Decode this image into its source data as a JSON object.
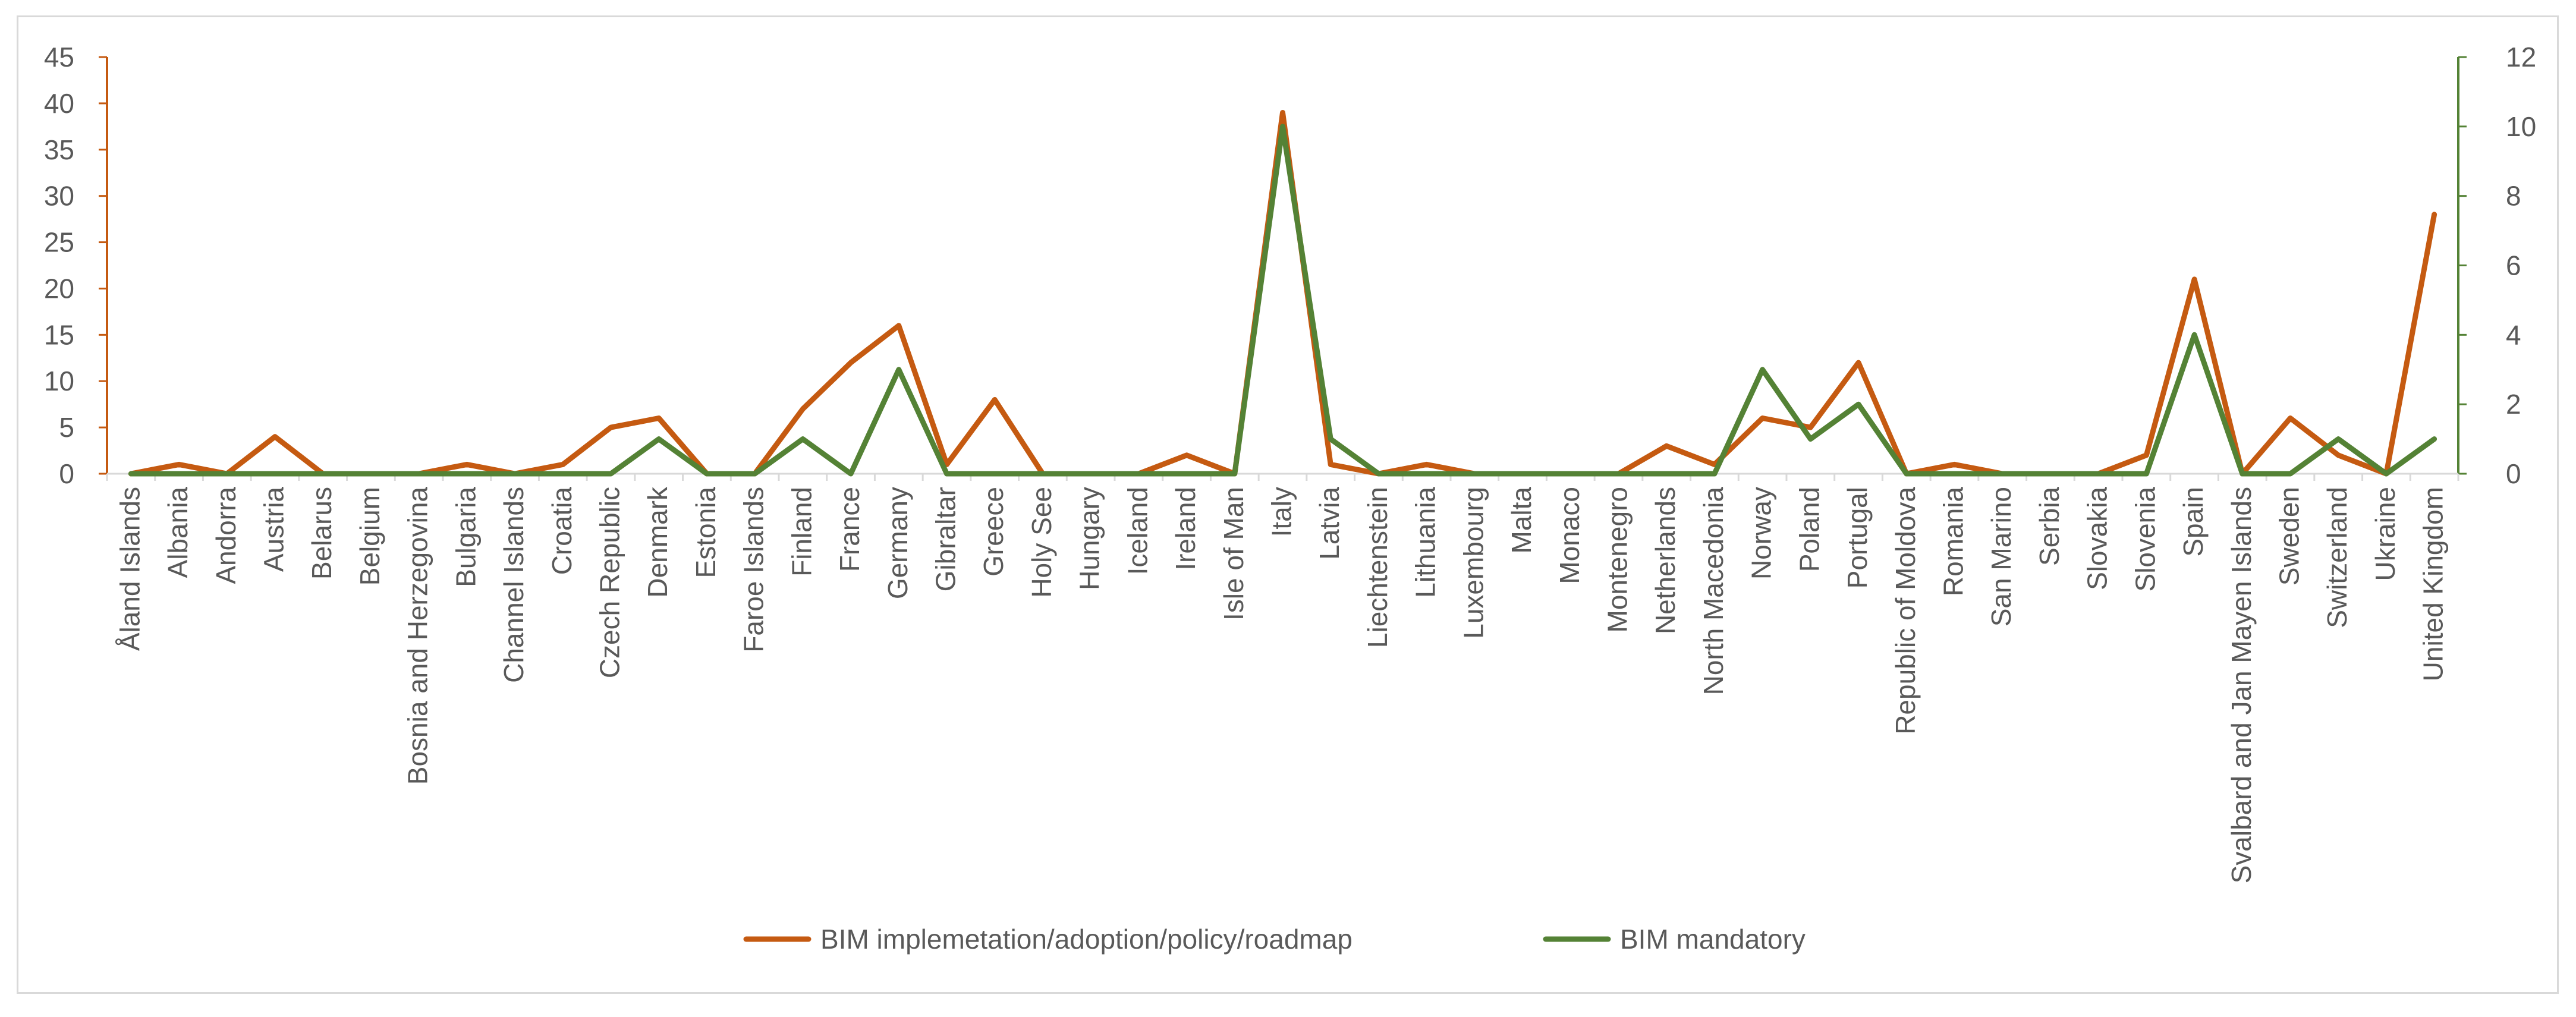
{
  "chart_data": {
    "type": "line",
    "categories": [
      "Åland Islands",
      "Albania",
      "Andorra",
      "Austria",
      "Belarus",
      "Belgium",
      "Bosnia and Herzegovina",
      "Bulgaria",
      "Channel Islands",
      "Croatia",
      "Czech Republic",
      "Denmark",
      "Estonia",
      "Faroe Islands",
      "Finland",
      "France",
      "Germany",
      "Gibraltar",
      "Greece",
      "Holy See",
      "Hungary",
      "Iceland",
      "Ireland",
      "Isle of Man",
      "Italy",
      "Latvia",
      "Liechtenstein",
      "Lithuania",
      "Luxembourg",
      "Malta",
      "Monaco",
      "Montenegro",
      "Netherlands",
      "North Macedonia",
      "Norway",
      "Poland",
      "Portugal",
      "Republic of Moldova",
      "Romania",
      "San Marino",
      "Serbia",
      "Slovakia",
      "Slovenia",
      "Spain",
      "Svalbard and Jan Mayen Islands",
      "Sweden",
      "Switzerland",
      "Ukraine",
      "United Kingdom"
    ],
    "series": [
      {
        "name": "BIM implemetation/adoption/policy/roadmap",
        "axis": "left",
        "color": "#c55a11",
        "values": [
          0,
          1,
          0,
          4,
          0,
          0,
          0,
          1,
          0,
          1,
          5,
          6,
          0,
          0,
          7,
          12,
          16,
          1,
          8,
          0,
          0,
          0,
          2,
          0,
          39,
          1,
          0,
          1,
          0,
          0,
          0,
          0,
          3,
          1,
          6,
          5,
          12,
          0,
          1,
          0,
          0,
          0,
          2,
          21,
          0,
          6,
          2,
          0,
          28
        ]
      },
      {
        "name": "BIM mandatory",
        "axis": "right",
        "color": "#548235",
        "values": [
          0,
          0,
          0,
          0,
          0,
          0,
          0,
          0,
          0,
          0,
          0,
          1,
          0,
          0,
          1,
          0,
          3,
          0,
          0,
          0,
          0,
          0,
          0,
          0,
          10,
          1,
          0,
          0,
          0,
          0,
          0,
          0,
          0,
          0,
          3,
          1,
          2,
          0,
          0,
          0,
          0,
          0,
          0,
          4,
          0,
          0,
          1,
          0,
          1
        ]
      }
    ],
    "ylim_left": [
      0,
      45
    ],
    "yticks_left": [
      "0",
      "5",
      "10",
      "15",
      "20",
      "25",
      "30",
      "35",
      "40",
      "45"
    ],
    "ylim_right": [
      0,
      12
    ],
    "yticks_right": [
      "0",
      "2",
      "4",
      "6",
      "8",
      "10",
      "12"
    ],
    "legend_position": "bottom",
    "grid": false
  }
}
